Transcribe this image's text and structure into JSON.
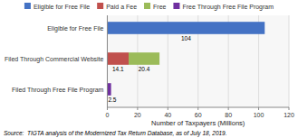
{
  "chart_data": {
    "type": "bar",
    "orientation": "horizontal",
    "stacked": true,
    "categories": [
      "Filed Through Free File Program",
      "Filed Through Commercial Website",
      "Eligible for Free File"
    ],
    "series": [
      {
        "name": "Eligible for Free File",
        "color": "#4472C4",
        "values": [
          0,
          0,
          104
        ]
      },
      {
        "name": "Paid a Fee",
        "color": "#C0504D",
        "values": [
          0,
          14.1,
          0
        ]
      },
      {
        "name": "Free",
        "color": "#9BBB59",
        "values": [
          0,
          20.4,
          0
        ]
      },
      {
        "name": "Free Through Free File Program",
        "color": "#7030A0",
        "values": [
          2.5,
          0,
          0
        ]
      }
    ],
    "xlim": [
      0,
      120
    ],
    "xticks": [
      0,
      20,
      40,
      60,
      80,
      100,
      120
    ],
    "xlabel": "Number of Taxpayers (Millions)",
    "grid": true,
    "legend": "top",
    "data_labels": true,
    "annotations": [
      "Source:  TIGTA analysis of the Modernized Tax Return Database, as of July 18, 2019."
    ]
  }
}
